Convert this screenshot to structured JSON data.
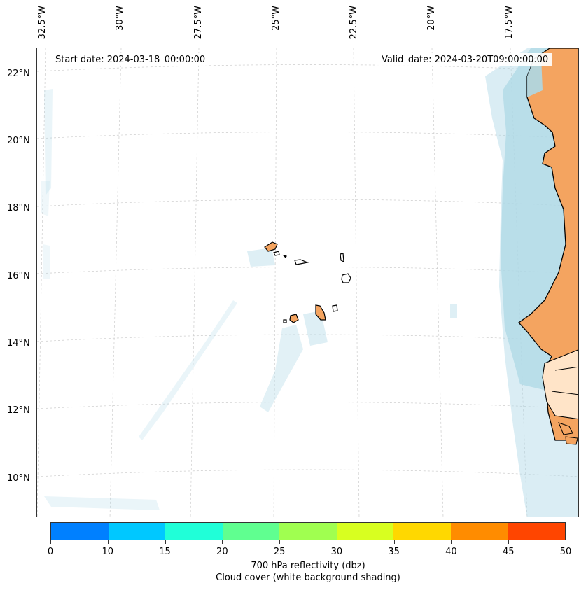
{
  "map": {
    "start_date": "Start date: 2024-03-18_00:00:00",
    "valid_date": "Valid_date: 2024-03-20T09:00:00.00",
    "longitude_labels": [
      "32.5°W",
      "30°W",
      "27.5°W",
      "25°W",
      "22.5°W",
      "20°W",
      "17.5°W"
    ],
    "latitude_labels": [
      "22°N",
      "20°N",
      "18°N",
      "16°N",
      "14°N",
      "12°N",
      "10°N"
    ],
    "colors": {
      "land": "#f4a460",
      "cloud": "#add8e6",
      "coast": "#000000",
      "grid": "#cccccc"
    }
  },
  "colorbar": {
    "ticks": [
      "0",
      "10",
      "15",
      "20",
      "25",
      "30",
      "35",
      "40",
      "45",
      "50"
    ],
    "colors": [
      "#0080ff",
      "#00c8ff",
      "#20ffd8",
      "#60ff90",
      "#a0ff50",
      "#d8ff20",
      "#ffd800",
      "#ff8c00",
      "#ff4500"
    ],
    "label_line1": "700 hPa reflectivity (dbz)",
    "label_line2": "Cloud cover (white background shading)"
  }
}
